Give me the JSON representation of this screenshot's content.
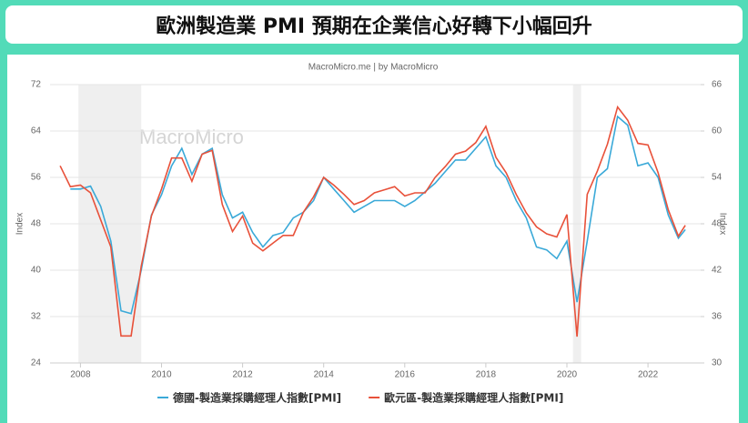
{
  "header": {
    "title": "歐洲製造業 PMI 預期在企業信心好轉下小幅回升"
  },
  "chart_data": {
    "type": "line",
    "subtitle": "MacroMicro.me | by MacroMicro",
    "watermark": "MacroMicro",
    "y_label": "Index",
    "y2_label": "Index",
    "xlim": [
      2007.25,
      2023.3
    ],
    "xticks": [
      2008,
      2010,
      2012,
      2014,
      2016,
      2018,
      2020,
      2022
    ],
    "ylim": [
      24,
      72
    ],
    "yticks": [
      24,
      32,
      40,
      48,
      56,
      64,
      72
    ],
    "y2lim": [
      30,
      66
    ],
    "y2ticks": [
      30,
      36,
      42,
      48,
      54,
      60,
      66
    ],
    "shaded_ranges": [
      [
        2007.95,
        2009.5
      ],
      [
        2020.15,
        2020.35
      ]
    ],
    "x": [
      2007.5,
      2007.75,
      2008,
      2008.25,
      2008.5,
      2008.75,
      2009,
      2009.25,
      2009.5,
      2009.75,
      2010,
      2010.25,
      2010.5,
      2010.75,
      2011,
      2011.25,
      2011.5,
      2011.75,
      2012,
      2012.25,
      2012.5,
      2012.75,
      2013,
      2013.25,
      2013.5,
      2013.75,
      2014,
      2014.25,
      2014.5,
      2014.75,
      2015,
      2015.25,
      2015.5,
      2015.75,
      2016,
      2016.25,
      2016.5,
      2016.75,
      2017,
      2017.25,
      2017.5,
      2017.75,
      2018,
      2018.25,
      2018.5,
      2018.75,
      2019,
      2019.25,
      2019.5,
      2019.75,
      2020,
      2020.25,
      2020.5,
      2020.75,
      2021,
      2021.25,
      2021.5,
      2021.75,
      2022,
      2022.25,
      2022.5,
      2022.75,
      2022.92
    ],
    "series": [
      {
        "name": "德國-製造業採購經理人指數[PMI]",
        "color": "#3aa9d8",
        "axis": "y",
        "values": [
          null,
          54,
          54,
          54.5,
          51,
          45,
          33,
          32.5,
          40,
          49.5,
          53,
          58,
          61,
          56.5,
          60,
          61,
          53,
          49,
          50,
          46.5,
          44,
          46,
          46.5,
          49,
          50,
          52,
          56,
          54,
          52,
          50,
          51,
          52,
          52,
          52,
          51,
          52,
          53.5,
          55,
          57,
          59,
          59,
          61,
          63,
          58,
          56,
          52,
          49,
          44,
          43.5,
          42,
          45,
          34.5,
          45,
          56,
          57.5,
          66.5,
          65,
          58,
          58.5,
          56,
          49.5,
          45.5,
          47
        ]
      },
      {
        "name": "歐元區-製造業採購經理人指數[PMI]",
        "color": "#e8513a",
        "axis": "y2",
        "values": [
          55.5,
          52.8,
          53,
          52,
          48.5,
          45,
          33.5,
          33.5,
          42.5,
          49,
          52.5,
          56.5,
          56.5,
          53.5,
          57,
          57.5,
          50.5,
          47,
          49,
          45.5,
          44.5,
          45.5,
          46.5,
          46.5,
          49.5,
          51.5,
          54,
          53,
          51.8,
          50.5,
          51,
          52,
          52.4,
          52.8,
          51.6,
          52,
          52,
          54,
          55.4,
          57,
          57.4,
          58.5,
          60.6,
          56.6,
          54.6,
          51.8,
          49.4,
          47.6,
          46.7,
          46.3,
          49.2,
          33.4,
          51.8,
          54.8,
          58.3,
          63.1,
          61.4,
          58.4,
          58.2,
          54.6,
          49.8,
          46.4,
          47.8
        ]
      }
    ]
  }
}
